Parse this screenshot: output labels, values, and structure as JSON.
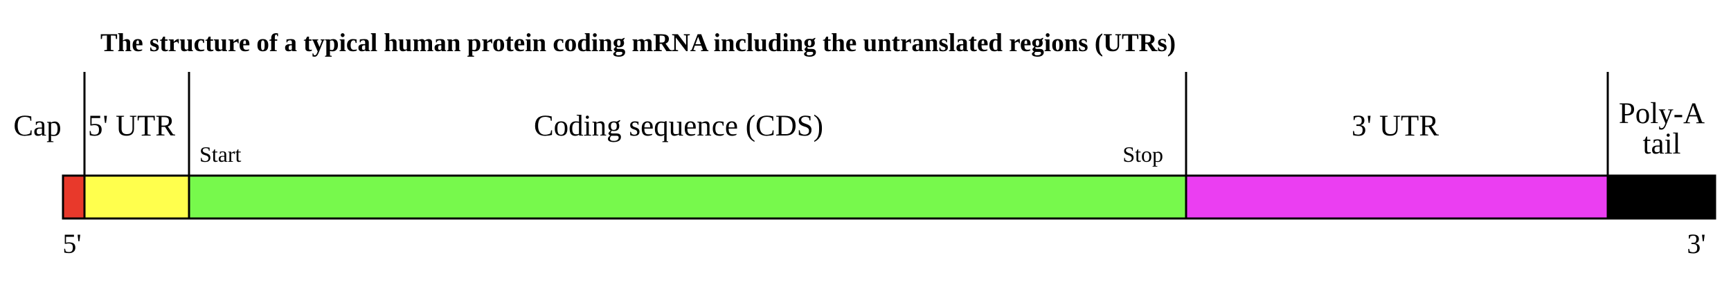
{
  "title": "The structure of a typical human protein coding mRNA including the untranslated regions (UTRs)",
  "regions": [
    {
      "id": "cap",
      "label": "Cap",
      "color": "#e8392b"
    },
    {
      "id": "utr5",
      "label": "5' UTR",
      "color": "#ffff4d"
    },
    {
      "id": "cds",
      "label": "Coding sequence (CDS)",
      "color": "#77f94c"
    },
    {
      "id": "utr3",
      "label": "3' UTR",
      "color": "#eb3ef2"
    },
    {
      "id": "polya",
      "label_line1": "Poly-A",
      "label_line2": "tail",
      "color": "#000000"
    }
  ],
  "markers": {
    "start": "Start",
    "stop": "Stop"
  },
  "ends": {
    "five_prime": "5'",
    "three_prime": "3'"
  }
}
